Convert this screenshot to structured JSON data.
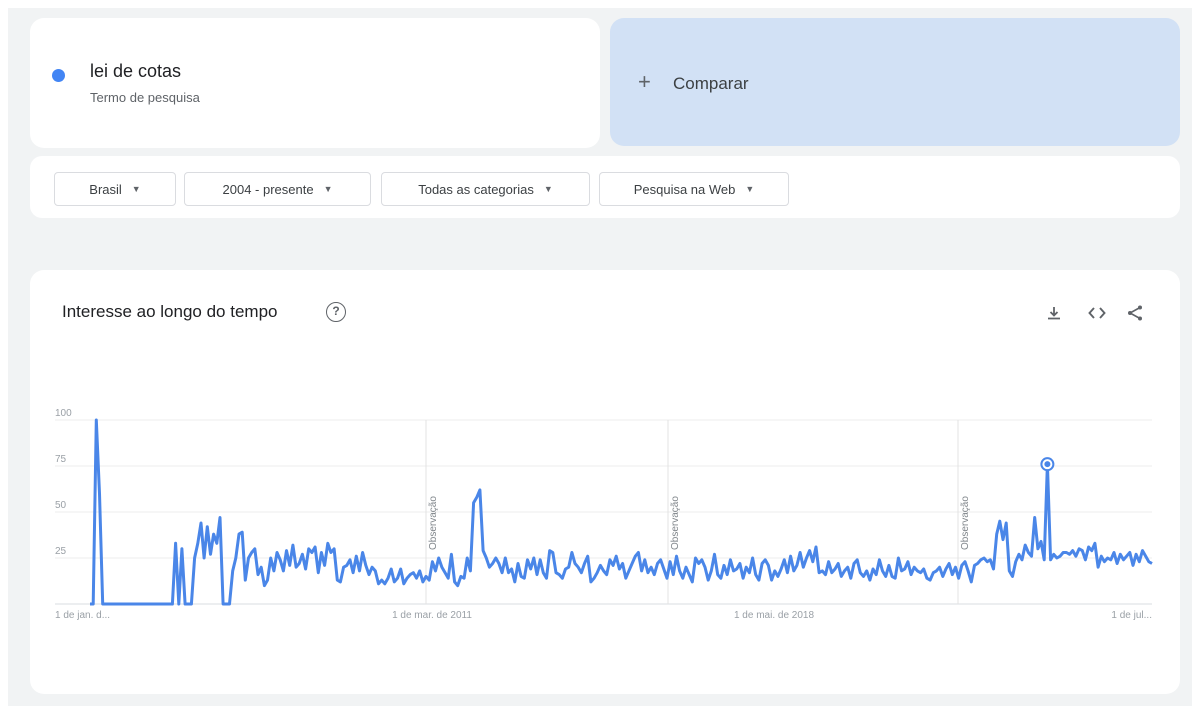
{
  "search_term": {
    "name": "lei de cotas",
    "subtitle": "Termo de pesquisa",
    "color": "#4285f4"
  },
  "compare": {
    "icon": "plus-icon",
    "label": "Comparar"
  },
  "filters": [
    {
      "label": "Brasil"
    },
    {
      "label": "2004 - presente"
    },
    {
      "label": "Todas as categorias"
    },
    {
      "label": "Pesquisa na Web"
    }
  ],
  "chart_section": {
    "title": "Interesse ao longo do tempo",
    "help_icon": "help-circle-icon",
    "tools": [
      "download-icon",
      "embed-code-icon",
      "share-icon"
    ]
  },
  "chart_data": {
    "type": "line",
    "series_color": "#4a86e8",
    "ylim": [
      0,
      100
    ],
    "y_ticks": [
      "25",
      "50",
      "75",
      "100"
    ],
    "x_tick_labels": [
      "1 de jan. d...",
      "1 de mar. de 2011",
      "1 de mai. de 2018",
      "1 de jul..."
    ],
    "annotations": [
      "Observação",
      "Observação",
      "Observação"
    ],
    "grid": true,
    "values": [
      0,
      0,
      100,
      60,
      0,
      0,
      0,
      0,
      0,
      0,
      0,
      0,
      0,
      0,
      0,
      0,
      0,
      0,
      0,
      0,
      0,
      0,
      0,
      0,
      0,
      0,
      0,
      33,
      0,
      30,
      0,
      0,
      0,
      25,
      33,
      44,
      25,
      42,
      27,
      38,
      33,
      47,
      0,
      0,
      0,
      18,
      25,
      38,
      39,
      13,
      25,
      28,
      30,
      16,
      20,
      10,
      13,
      25,
      18,
      28,
      24,
      18,
      29,
      21,
      32,
      20,
      22,
      27,
      19,
      30,
      28,
      31,
      17,
      28,
      21,
      33,
      28,
      30,
      13,
      12,
      20,
      21,
      24,
      17,
      26,
      18,
      28,
      21,
      16,
      20,
      18,
      11,
      13,
      11,
      14,
      19,
      12,
      14,
      19,
      11,
      14,
      16,
      17,
      14,
      18,
      12,
      15,
      13,
      23,
      18,
      25,
      20,
      17,
      14,
      27,
      12,
      10,
      15,
      14,
      25,
      18,
      55,
      58,
      62,
      29,
      25,
      20,
      22,
      25,
      22,
      17,
      25,
      17,
      19,
      12,
      22,
      15,
      14,
      24,
      19,
      25,
      16,
      24,
      17,
      14,
      29,
      28,
      17,
      16,
      14,
      19,
      20,
      28,
      22,
      20,
      17,
      22,
      26,
      12,
      14,
      17,
      21,
      18,
      16,
      24,
      21,
      26,
      19,
      22,
      14,
      18,
      22,
      26,
      28,
      18,
      24,
      17,
      20,
      16,
      22,
      24,
      19,
      14,
      23,
      16,
      26,
      18,
      14,
      20,
      16,
      12,
      25,
      22,
      24,
      20,
      13,
      18,
      27,
      16,
      14,
      21,
      16,
      24,
      18,
      19,
      22,
      14,
      20,
      17,
      25,
      16,
      13,
      22,
      24,
      21,
      13,
      18,
      15,
      19,
      24,
      17,
      26,
      18,
      21,
      28,
      20,
      25,
      29,
      23,
      31,
      17,
      18,
      16,
      23,
      17,
      19,
      22,
      15,
      18,
      20,
      14,
      22,
      24,
      17,
      15,
      18,
      13,
      19,
      16,
      24,
      18,
      15,
      21,
      15,
      14,
      25,
      18,
      19,
      23,
      16,
      20,
      18,
      17,
      19,
      14,
      13,
      17,
      18,
      20,
      15,
      19,
      22,
      16,
      20,
      14,
      21,
      23,
      18,
      12,
      21,
      22,
      24,
      25,
      23,
      24,
      19,
      38,
      45,
      35,
      44,
      18,
      15,
      23,
      27,
      24,
      32,
      28,
      26,
      47,
      30,
      34,
      24,
      76,
      24,
      27,
      25,
      26,
      28,
      28,
      27,
      29,
      26,
      30,
      29,
      24,
      31,
      29,
      33,
      20,
      26,
      23,
      25,
      24,
      28,
      22,
      27,
      24,
      26,
      28,
      21,
      27,
      23,
      29,
      26,
      23,
      22
    ]
  }
}
